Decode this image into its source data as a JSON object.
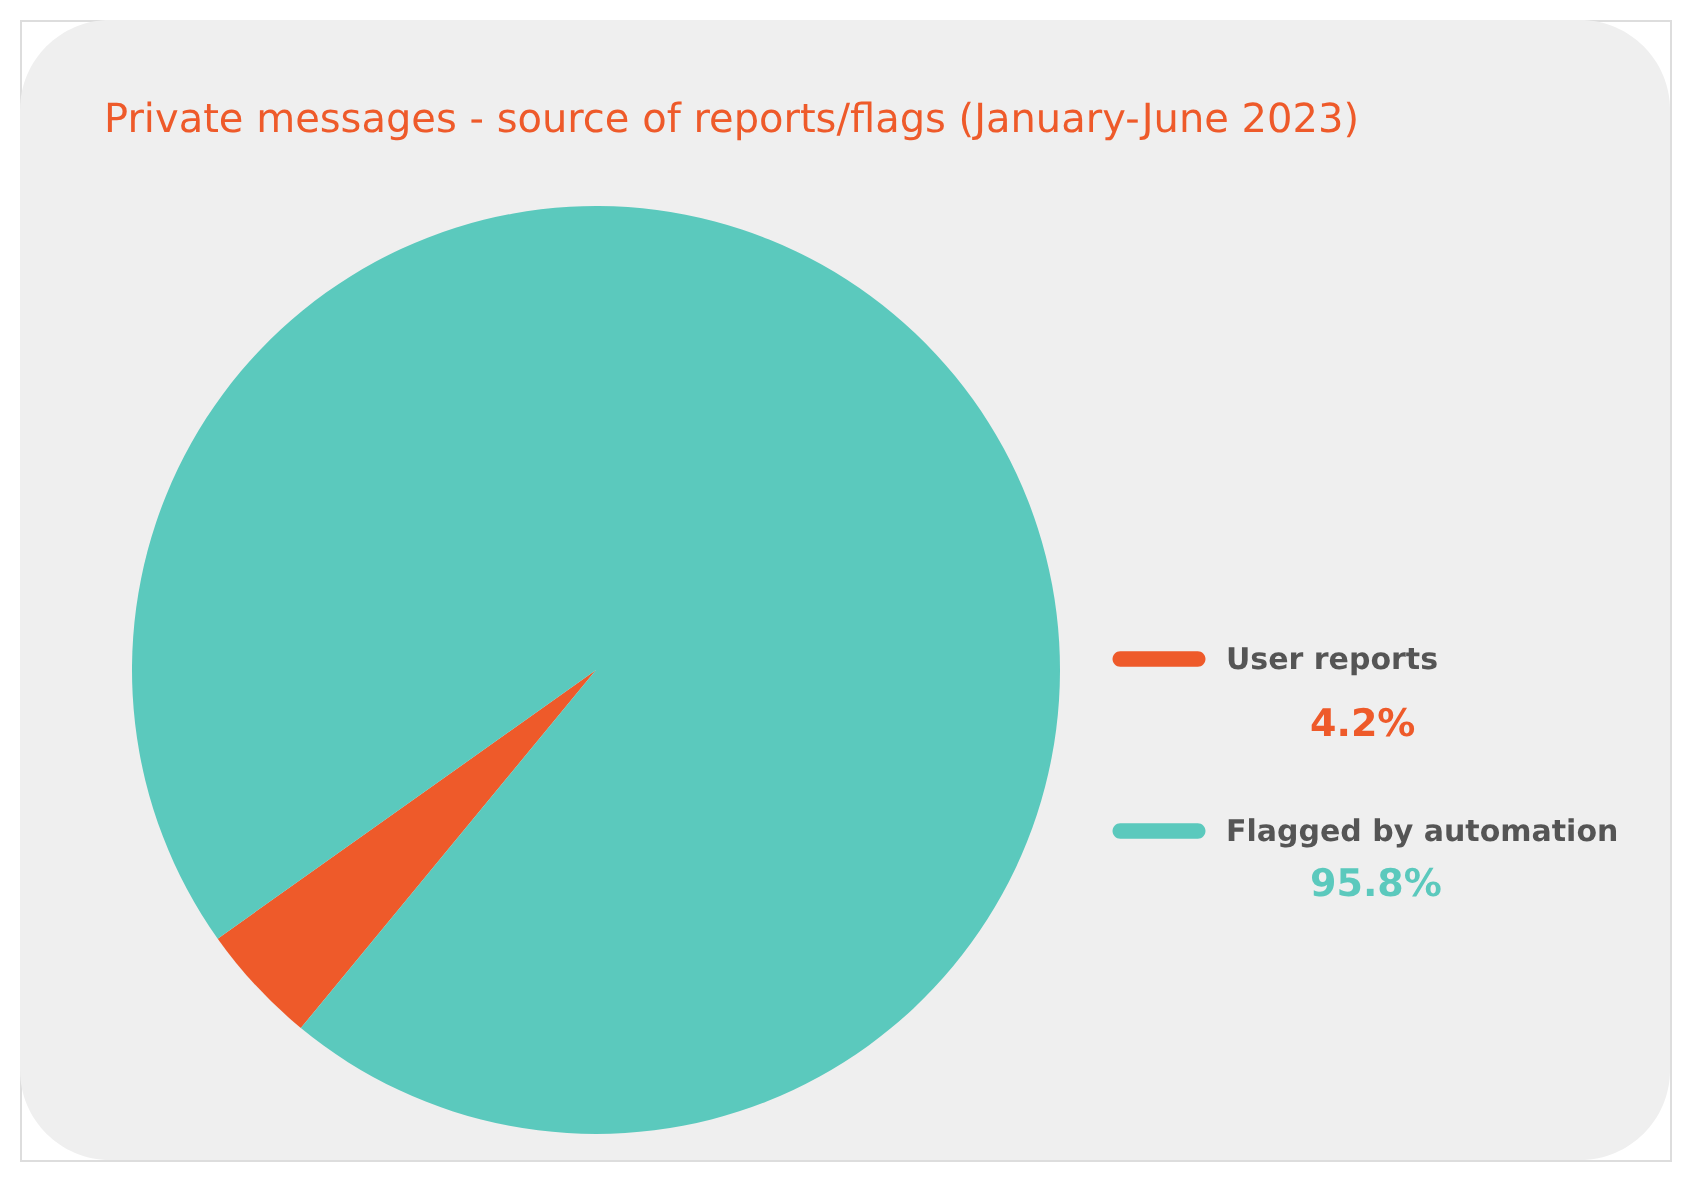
{
  "chart_data": {
    "type": "pie",
    "title": "Private messages - source of reports/flags (January-June 2023)",
    "categories": [
      "User reports",
      "Flagged by automation"
    ],
    "values": [
      4.2,
      95.8
    ],
    "colors": [
      "#ee5a2a",
      "#5bc9bd"
    ],
    "value_labels": [
      "4.2%",
      "95.8%"
    ],
    "legend": "right"
  }
}
